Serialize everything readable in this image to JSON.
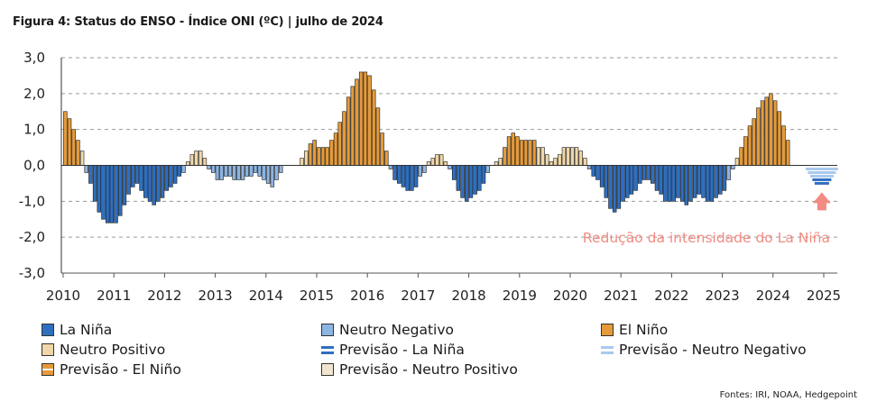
{
  "header": {
    "title": "Figura 4: Status do ENSO - Índice ONI (ºC) | julho de 2024"
  },
  "footer": {
    "source": "Fontes: IRI, NOAA, Hedgepoint"
  },
  "colors": {
    "la_nina": "#2e6fc0",
    "neutro_negativo": "#8db5e2",
    "el_nino": "#e59b3a",
    "neutro_positivo": "#f0d7a8",
    "previsao_la_nina": "#2e6fc0",
    "previsao_neutro_negativo": "#a9c9ee",
    "previsao_el_nino": "#e59b3a",
    "previsao_neutro_positivo": "#f0e6cf",
    "annotation": "#f28b82",
    "gridline": "#9a9a9a"
  },
  "legend": [
    {
      "label": "La Niña",
      "category": "la_nina",
      "style": "box"
    },
    {
      "label": "Neutro Negativo",
      "category": "neutro_negativo",
      "style": "box"
    },
    {
      "label": "El Niño",
      "category": "el_nino",
      "style": "box"
    },
    {
      "label": "Neutro Positivo",
      "category": "neutro_positivo",
      "style": "box"
    },
    {
      "label": "Previsão - La Niña",
      "category": "previsao_la_nina",
      "style": "dash"
    },
    {
      "label": "Previsão - Neutro Negativo",
      "category": "previsao_neutro_negativo",
      "style": "dash"
    },
    {
      "label": "Previsão - El Niño",
      "category": "previsao_el_nino",
      "style": "boxdash"
    },
    {
      "label": "Previsão - Neutro Positivo",
      "category": "previsao_neutro_positivo",
      "style": "box"
    }
  ],
  "chart_data": {
    "type": "bar",
    "ylim": [
      -3.0,
      3.0
    ],
    "yticks": [
      "3,0",
      "2,0",
      "1,0",
      "0,0",
      "-1,0",
      "-2,0",
      "-3,0"
    ],
    "ytick_values": [
      3,
      2,
      1,
      0,
      -1,
      -2,
      -3
    ],
    "xticks": [
      "2010",
      "2011",
      "2012",
      "2013",
      "2014",
      "2015",
      "2016",
      "2017",
      "2018",
      "2019",
      "2020",
      "2021",
      "2022",
      "2023",
      "2024",
      "2025"
    ],
    "x_start": "2010-01",
    "grid": "horizontal dashed",
    "oni_values": [
      1.5,
      1.3,
      1.0,
      0.7,
      0.4,
      -0.2,
      -0.5,
      -1.0,
      -1.3,
      -1.5,
      -1.6,
      -1.6,
      -1.6,
      -1.4,
      -1.1,
      -0.8,
      -0.6,
      -0.5,
      -0.7,
      -0.9,
      -1.0,
      -1.1,
      -1.0,
      -0.9,
      -0.7,
      -0.6,
      -0.5,
      -0.3,
      -0.2,
      0.1,
      0.3,
      0.4,
      0.4,
      0.2,
      -0.1,
      -0.2,
      -0.4,
      -0.4,
      -0.3,
      -0.3,
      -0.4,
      -0.4,
      -0.4,
      -0.3,
      -0.3,
      -0.2,
      -0.3,
      -0.4,
      -0.5,
      -0.6,
      -0.4,
      -0.2,
      0.0,
      0.0,
      0.0,
      0.0,
      0.2,
      0.4,
      0.6,
      0.7,
      0.5,
      0.5,
      0.5,
      0.7,
      0.9,
      1.2,
      1.5,
      1.9,
      2.2,
      2.4,
      2.6,
      2.6,
      2.5,
      2.1,
      1.6,
      0.9,
      0.4,
      -0.1,
      -0.4,
      -0.5,
      -0.6,
      -0.7,
      -0.7,
      -0.6,
      -0.3,
      -0.2,
      0.1,
      0.2,
      0.3,
      0.3,
      0.1,
      -0.1,
      -0.4,
      -0.7,
      -0.9,
      -1.0,
      -0.9,
      -0.8,
      -0.7,
      -0.5,
      -0.2,
      0.0,
      0.1,
      0.2,
      0.5,
      0.8,
      0.9,
      0.8,
      0.7,
      0.7,
      0.7,
      0.7,
      0.5,
      0.5,
      0.3,
      0.1,
      0.2,
      0.3,
      0.5,
      0.5,
      0.5,
      0.5,
      0.4,
      0.2,
      -0.1,
      -0.3,
      -0.4,
      -0.6,
      -0.9,
      -1.2,
      -1.3,
      -1.2,
      -1.0,
      -0.9,
      -0.8,
      -0.7,
      -0.5,
      -0.4,
      -0.4,
      -0.5,
      -0.7,
      -0.8,
      -1.0,
      -1.0,
      -1.0,
      -0.9,
      -1.0,
      -1.1,
      -1.0,
      -0.9,
      -0.8,
      -0.9,
      -1.0,
      -1.0,
      -0.9,
      -0.8,
      -0.7,
      -0.4,
      -0.1,
      0.2,
      0.5,
      0.8,
      1.1,
      1.3,
      1.6,
      1.8,
      1.9,
      2.0,
      1.8,
      1.5,
      1.1,
      0.7
    ],
    "oni_categories": [
      "el_nino",
      "el_nino",
      "el_nino",
      "el_nino",
      "neutro_positivo",
      "neutro_negativo",
      "la_nina",
      "la_nina",
      "la_nina",
      "la_nina",
      "la_nina",
      "la_nina",
      "la_nina",
      "la_nina",
      "la_nina",
      "la_nina",
      "la_nina",
      "la_nina",
      "la_nina",
      "la_nina",
      "la_nina",
      "la_nina",
      "la_nina",
      "la_nina",
      "la_nina",
      "la_nina",
      "la_nina",
      "la_nina",
      "neutro_negativo",
      "neutro_positivo",
      "neutro_positivo",
      "neutro_positivo",
      "neutro_positivo",
      "neutro_positivo",
      "neutro_negativo",
      "neutro_negativo",
      "neutro_negativo",
      "neutro_negativo",
      "neutro_negativo",
      "neutro_negativo",
      "neutro_negativo",
      "neutro_negativo",
      "neutro_negativo",
      "neutro_negativo",
      "neutro_negativo",
      "neutro_negativo",
      "neutro_negativo",
      "neutro_negativo",
      "neutro_negativo",
      "neutro_negativo",
      "neutro_negativo",
      "neutro_negativo",
      "neutro_negativo",
      "neutro_positivo",
      "neutro_positivo",
      "neutro_positivo",
      "neutro_positivo",
      "neutro_positivo",
      "el_nino",
      "el_nino",
      "el_nino",
      "el_nino",
      "el_nino",
      "el_nino",
      "el_nino",
      "el_nino",
      "el_nino",
      "el_nino",
      "el_nino",
      "el_nino",
      "el_nino",
      "el_nino",
      "el_nino",
      "el_nino",
      "el_nino",
      "el_nino",
      "el_nino",
      "neutro_negativo",
      "la_nina",
      "la_nina",
      "la_nina",
      "la_nina",
      "la_nina",
      "la_nina",
      "neutro_negativo",
      "neutro_negativo",
      "neutro_positivo",
      "neutro_positivo",
      "neutro_positivo",
      "neutro_positivo",
      "neutro_positivo",
      "neutro_negativo",
      "la_nina",
      "la_nina",
      "la_nina",
      "la_nina",
      "la_nina",
      "la_nina",
      "la_nina",
      "la_nina",
      "neutro_negativo",
      "neutro_negativo",
      "neutro_positivo",
      "neutro_positivo",
      "el_nino",
      "el_nino",
      "el_nino",
      "el_nino",
      "el_nino",
      "el_nino",
      "el_nino",
      "el_nino",
      "neutro_positivo",
      "neutro_positivo",
      "neutro_positivo",
      "neutro_positivo",
      "neutro_positivo",
      "neutro_positivo",
      "neutro_positivo",
      "neutro_positivo",
      "neutro_positivo",
      "neutro_positivo",
      "neutro_positivo",
      "neutro_positivo",
      "neutro_negativo",
      "la_nina",
      "la_nina",
      "la_nina",
      "la_nina",
      "la_nina",
      "la_nina",
      "la_nina",
      "la_nina",
      "la_nina",
      "la_nina",
      "la_nina",
      "la_nina",
      "la_nina",
      "la_nina",
      "la_nina",
      "la_nina",
      "la_nina",
      "la_nina",
      "la_nina",
      "la_nina",
      "la_nina",
      "la_nina",
      "la_nina",
      "la_nina",
      "la_nina",
      "la_nina",
      "la_nina",
      "la_nina",
      "la_nina",
      "la_nina",
      "la_nina",
      "la_nina",
      "neutro_negativo",
      "neutro_negativo",
      "neutro_positivo",
      "el_nino",
      "el_nino",
      "el_nino",
      "el_nino",
      "el_nino",
      "el_nino",
      "el_nino",
      "el_nino",
      "el_nino",
      "el_nino",
      "el_nino",
      "el_nino"
    ],
    "forecast": {
      "start_month_index": 174,
      "values": [
        -0.1,
        -0.2,
        -0.3,
        -0.4,
        -0.5
      ],
      "categories": [
        "previsao_neutro_negativo",
        "previsao_neutro_negativo",
        "previsao_neutro_negativo",
        "previsao_la_nina",
        "previsao_la_nina"
      ]
    },
    "annotations": [
      {
        "text": "Redução da intensidade do La Niña",
        "color": "#f28b82",
        "at": {
          "x": "2024-09",
          "y": -2.0
        }
      },
      {
        "text": "",
        "type": "arrow-up",
        "color": "#f28b82",
        "at": {
          "x": "2024-12",
          "y": -0.9
        }
      }
    ]
  }
}
